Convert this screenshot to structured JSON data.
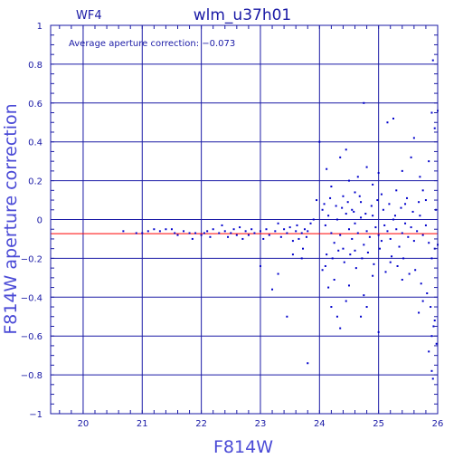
{
  "chart_data": {
    "type": "scatter",
    "title": "wlm_u37h01",
    "chip_label": "WF4",
    "annotation": "Average aperture correction: −0.073",
    "xlabel": "F814W",
    "ylabel": "F814W aperture correction",
    "xlim": [
      19.45,
      26
    ],
    "ylim": [
      -1,
      1
    ],
    "x_ticks": [
      20,
      21,
      22,
      23,
      24,
      25,
      26
    ],
    "y_ticks": [
      -1,
      -0.8,
      -0.6,
      -0.4,
      -0.2,
      0,
      0.2,
      0.4,
      0.6,
      0.8,
      1
    ],
    "y_tick_labels": [
      "−1",
      "−0.8",
      "−0.6",
      "−0.4",
      "−0.2",
      "0",
      "0.2",
      "0.4",
      "0.6",
      "0.8",
      "1"
    ],
    "grid": true,
    "reference_line": {
      "y": -0.073,
      "color": "#ff0000"
    },
    "colors": {
      "frame": "#1a1aa6",
      "points": "#0000cc",
      "axis_title": "#4a4ad6"
    },
    "series": [
      {
        "values": [
          [
            20.68,
            -0.06
          ],
          [
            20.9,
            -0.07
          ],
          [
            21.0,
            -0.07
          ],
          [
            21.1,
            -0.06
          ],
          [
            21.2,
            -0.05
          ],
          [
            21.3,
            -0.06
          ],
          [
            21.4,
            -0.05
          ],
          [
            21.5,
            -0.05
          ],
          [
            21.55,
            -0.07
          ],
          [
            21.6,
            -0.08
          ],
          [
            21.7,
            -0.06
          ],
          [
            21.8,
            -0.07
          ],
          [
            21.85,
            -0.1
          ],
          [
            21.9,
            -0.07
          ],
          [
            22.0,
            -0.08
          ],
          [
            22.05,
            -0.07
          ],
          [
            22.1,
            -0.06
          ],
          [
            22.15,
            -0.09
          ],
          [
            22.2,
            -0.05
          ],
          [
            22.3,
            -0.07
          ],
          [
            22.35,
            -0.03
          ],
          [
            22.4,
            -0.06
          ],
          [
            22.45,
            -0.09
          ],
          [
            22.5,
            -0.07
          ],
          [
            22.55,
            -0.05
          ],
          [
            22.6,
            -0.08
          ],
          [
            22.65,
            -0.04
          ],
          [
            22.7,
            -0.1
          ],
          [
            22.75,
            -0.06
          ],
          [
            22.8,
            -0.08
          ],
          [
            22.85,
            -0.05
          ],
          [
            22.9,
            -0.07
          ],
          [
            23.0,
            -0.06
          ],
          [
            23.0,
            -0.24
          ],
          [
            23.05,
            -0.1
          ],
          [
            23.1,
            -0.05
          ],
          [
            23.15,
            -0.08
          ],
          [
            23.2,
            -0.36
          ],
          [
            23.25,
            -0.06
          ],
          [
            23.3,
            -0.02
          ],
          [
            23.35,
            -0.09
          ],
          [
            23.4,
            -0.05
          ],
          [
            23.45,
            -0.07
          ],
          [
            23.5,
            -0.04
          ],
          [
            23.55,
            -0.11
          ],
          [
            23.6,
            -0.06
          ],
          [
            23.62,
            -0.03
          ],
          [
            23.65,
            -0.1
          ],
          [
            23.7,
            -0.07
          ],
          [
            23.72,
            -0.15
          ],
          [
            23.75,
            -0.05
          ],
          [
            23.78,
            -0.09
          ],
          [
            23.8,
            -0.06
          ],
          [
            23.3,
            -0.28
          ],
          [
            23.45,
            -0.5
          ],
          [
            23.8,
            -0.74
          ],
          [
            23.55,
            -0.18
          ],
          [
            23.7,
            -0.2
          ],
          [
            23.85,
            -0.02
          ],
          [
            23.9,
            0.0
          ],
          [
            23.95,
            0.1
          ],
          [
            24.0,
            0.4
          ],
          [
            24.05,
            -0.26
          ],
          [
            24.1,
            -0.24
          ],
          [
            24.15,
            -0.35
          ],
          [
            24.2,
            -0.45
          ],
          [
            24.25,
            -0.31
          ],
          [
            24.3,
            -0.5
          ],
          [
            24.35,
            -0.56
          ],
          [
            24.45,
            -0.42
          ],
          [
            24.5,
            -0.34
          ],
          [
            24.6,
            -0.16
          ],
          [
            24.7,
            -0.5
          ],
          [
            24.75,
            -0.39
          ],
          [
            24.8,
            -0.45
          ],
          [
            24.9,
            -0.29
          ],
          [
            25.0,
            -0.58
          ],
          [
            25.2,
            -0.22
          ],
          [
            25.4,
            -0.31
          ],
          [
            24.12,
            0.26
          ],
          [
            24.2,
            0.17
          ],
          [
            24.28,
            0.07
          ],
          [
            24.35,
            0.32
          ],
          [
            24.4,
            0.12
          ],
          [
            24.45,
            0.36
          ],
          [
            24.5,
            0.2
          ],
          [
            24.55,
            0.05
          ],
          [
            24.6,
            0.14
          ],
          [
            24.65,
            0.22
          ],
          [
            24.7,
            0.09
          ],
          [
            24.75,
            0.6
          ],
          [
            24.8,
            0.27
          ],
          [
            24.9,
            0.18
          ],
          [
            25.0,
            0.24
          ],
          [
            25.05,
            0.13
          ],
          [
            25.15,
            0.5
          ],
          [
            25.25,
            0.52
          ],
          [
            25.3,
            0.15
          ],
          [
            25.4,
            0.25
          ],
          [
            25.45,
            0.08
          ],
          [
            25.55,
            0.32
          ],
          [
            25.6,
            0.42
          ],
          [
            25.7,
            0.22
          ],
          [
            25.75,
            0.15
          ],
          [
            25.8,
            0.1
          ],
          [
            25.85,
            0.3
          ],
          [
            25.9,
            0.55
          ],
          [
            25.92,
            0.82
          ],
          [
            25.95,
            0.47
          ],
          [
            25.97,
            0.05
          ],
          [
            26.0,
            0.56
          ],
          [
            24.05,
            0.05
          ],
          [
            24.1,
            -0.03
          ],
          [
            24.15,
            0.02
          ],
          [
            24.2,
            -0.07
          ],
          [
            24.25,
            -0.12
          ],
          [
            24.3,
            0.0
          ],
          [
            24.35,
            -0.08
          ],
          [
            24.4,
            -0.15
          ],
          [
            24.45,
            0.03
          ],
          [
            24.5,
            -0.05
          ],
          [
            24.55,
            -0.1
          ],
          [
            24.6,
            -0.02
          ],
          [
            24.65,
            -0.07
          ],
          [
            24.7,
            0.01
          ],
          [
            24.75,
            -0.13
          ],
          [
            24.8,
            -0.06
          ],
          [
            24.85,
            -0.09
          ],
          [
            24.9,
            0.02
          ],
          [
            24.95,
            -0.04
          ],
          [
            25.0,
            -0.08
          ],
          [
            25.05,
            -0.11
          ],
          [
            25.1,
            -0.03
          ],
          [
            25.15,
            -0.06
          ],
          [
            25.2,
            -0.1
          ],
          [
            25.25,
            0.0
          ],
          [
            25.3,
            -0.05
          ],
          [
            25.35,
            -0.14
          ],
          [
            25.4,
            -0.07
          ],
          [
            25.45,
            -0.02
          ],
          [
            25.5,
            -0.09
          ],
          [
            25.55,
            -0.04
          ],
          [
            25.6,
            -0.11
          ],
          [
            25.65,
            -0.06
          ],
          [
            25.7,
            0.02
          ],
          [
            25.75,
            -0.08
          ],
          [
            25.8,
            -0.03
          ],
          [
            25.85,
            -0.12
          ],
          [
            25.9,
            -0.2
          ],
          [
            25.95,
            -0.15
          ],
          [
            26.0,
            -0.13
          ],
          [
            24.12,
            -0.18
          ],
          [
            24.22,
            -0.2
          ],
          [
            24.32,
            -0.16
          ],
          [
            24.42,
            -0.22
          ],
          [
            24.52,
            -0.18
          ],
          [
            24.62,
            -0.25
          ],
          [
            24.72,
            -0.2
          ],
          [
            24.82,
            -0.17
          ],
          [
            24.92,
            -0.23
          ],
          [
            25.02,
            -0.15
          ],
          [
            25.12,
            -0.27
          ],
          [
            25.22,
            -0.19
          ],
          [
            25.32,
            -0.24
          ],
          [
            25.42,
            -0.2
          ],
          [
            25.52,
            -0.28
          ],
          [
            25.62,
            -0.26
          ],
          [
            25.72,
            -0.33
          ],
          [
            25.82,
            -0.38
          ],
          [
            25.88,
            -0.45
          ],
          [
            25.9,
            -0.6
          ],
          [
            25.93,
            -0.55
          ],
          [
            25.95,
            -0.52
          ],
          [
            25.98,
            -0.64
          ],
          [
            25.85,
            -0.68
          ],
          [
            25.9,
            -0.78
          ],
          [
            25.92,
            -0.82
          ],
          [
            25.75,
            -0.42
          ],
          [
            25.68,
            -0.48
          ],
          [
            24.08,
            0.08
          ],
          [
            24.18,
            0.11
          ],
          [
            24.38,
            0.06
          ],
          [
            24.48,
            0.09
          ],
          [
            24.58,
            0.04
          ],
          [
            24.68,
            0.12
          ],
          [
            24.78,
            0.03
          ],
          [
            24.88,
            0.07
          ],
          [
            24.98,
            0.1
          ],
          [
            25.08,
            0.05
          ],
          [
            25.18,
            0.08
          ],
          [
            25.28,
            0.02
          ],
          [
            25.38,
            0.06
          ],
          [
            25.48,
            0.11
          ],
          [
            25.58,
            0.04
          ],
          [
            25.68,
            0.09
          ]
        ]
      }
    ]
  }
}
